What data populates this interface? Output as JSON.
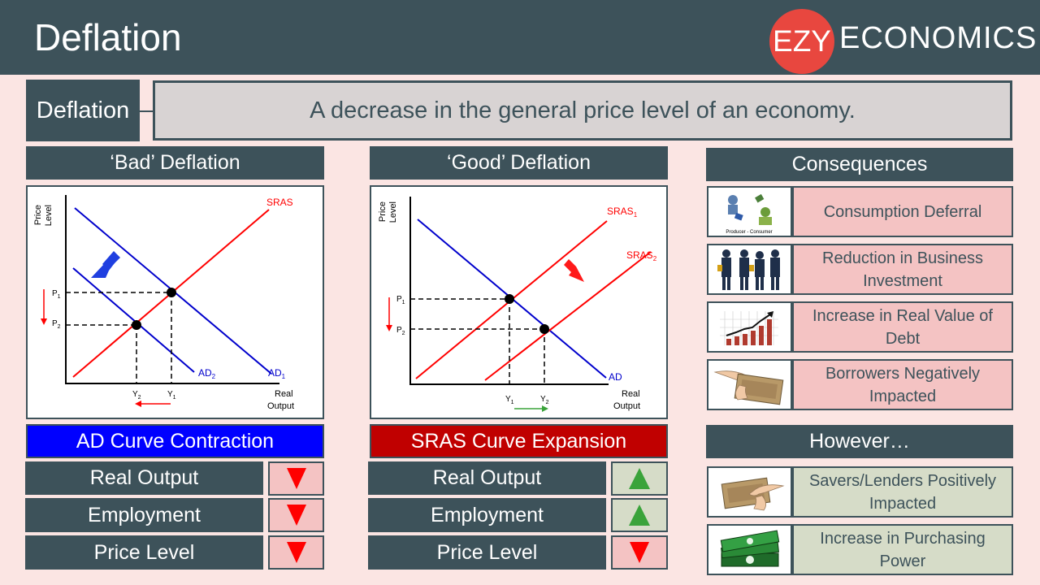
{
  "header": {
    "title": "Deflation",
    "logo_ezy": "EZY",
    "logo_rest": "ECONOMICS"
  },
  "definition": {
    "label": "Deflation",
    "text": "A decrease in the general price level of an economy."
  },
  "bad": {
    "title": "‘Bad’ Deflation",
    "y_axis": [
      "Price",
      "Level"
    ],
    "x_axis": [
      "Real",
      "Output"
    ],
    "curves": {
      "sras": "SRAS",
      "ad1": "AD",
      "ad1_sub": "1",
      "ad2": "AD",
      "ad2_sub": "2"
    },
    "p1": "P",
    "p1_sub": "1",
    "p2": "P",
    "p2_sub": "2",
    "y1": "Y",
    "y1_sub": "1",
    "y2": "Y",
    "y2_sub": "2",
    "banner": "AD Curve Contraction",
    "rows": [
      {
        "label": "Real Output",
        "direction": "down"
      },
      {
        "label": "Employment",
        "direction": "down"
      },
      {
        "label": "Price Level",
        "direction": "down"
      }
    ]
  },
  "good": {
    "title": "‘Good’ Deflation",
    "y_axis": [
      "Price",
      "Level"
    ],
    "x_axis": [
      "Real",
      "Output"
    ],
    "curves": {
      "ad": "AD",
      "sras1": "SRAS",
      "sras1_sub": "1",
      "sras2": "SRAS",
      "sras2_sub": "2"
    },
    "p1": "P",
    "p1_sub": "1",
    "p2": "P",
    "p2_sub": "2",
    "y1": "Y",
    "y1_sub": "1",
    "y2": "Y",
    "y2_sub": "2",
    "banner": "SRAS Curve Expansion",
    "rows": [
      {
        "label": "Real Output",
        "direction": "up"
      },
      {
        "label": "Employment",
        "direction": "up"
      },
      {
        "label": "Price Level",
        "direction": "down"
      }
    ]
  },
  "consequences": {
    "title": "Consequences",
    "items": [
      {
        "text": "Consumption Deferral",
        "icon": "producer-consumer-icon",
        "icon_caption": "Producer - Consumer"
      },
      {
        "text": "Reduction in Business Investment",
        "icon": "business-people-icon"
      },
      {
        "text": "Increase in Real Value of Debt",
        "icon": "rising-chart-icon"
      },
      {
        "text": "Borrowers Negatively Impacted",
        "icon": "money-hand-icon"
      }
    ]
  },
  "however": {
    "title": "However…",
    "items": [
      {
        "text": "Savers/Lenders Positively Impacted",
        "icon": "money-hand-icon"
      },
      {
        "text": "Increase in Purchasing Power",
        "icon": "cash-stack-icon"
      }
    ]
  },
  "colors": {
    "dark": "#3d525a",
    "pink": "#f4c3c3",
    "green_bg": "#d6dcc8",
    "blue": "#0000ff",
    "red": "#c00000",
    "logo_red": "#e8473f"
  }
}
